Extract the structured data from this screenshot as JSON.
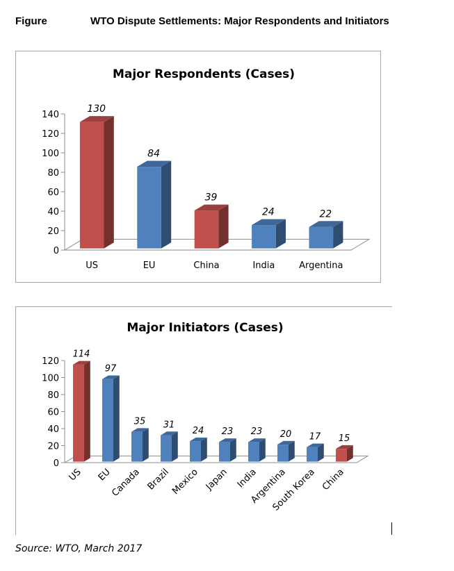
{
  "header": {
    "figure_label": "Figure",
    "title": "WTO Dispute Settlements: Major Respondents and Initiators"
  },
  "source": "Source: WTO, March 2017",
  "colors": {
    "red": "#c0504d",
    "blue": "#4f81bd"
  },
  "chart_data": [
    {
      "type": "bar",
      "title": "Major Respondents (Cases)",
      "categories": [
        "US",
        "EU",
        "China",
        "India",
        "Argentina"
      ],
      "values": [
        130,
        84,
        39,
        24,
        22
      ],
      "bar_colors": [
        "red",
        "blue",
        "red",
        "blue",
        "blue"
      ],
      "ylim": [
        0,
        140
      ],
      "yticks": [
        0,
        20,
        40,
        60,
        80,
        100,
        120,
        140
      ],
      "xlabel": "",
      "ylabel": "",
      "grid": false,
      "legend": "none",
      "style": "3d-column"
    },
    {
      "type": "bar",
      "title": "Major Initiators (Cases)",
      "categories": [
        "US",
        "EU",
        "Canada",
        "Brazil",
        "Mexico",
        "Japan",
        "India",
        "Argentina",
        "South Korea",
        "China"
      ],
      "values": [
        114,
        97,
        35,
        31,
        24,
        23,
        23,
        20,
        17,
        15
      ],
      "bar_colors": [
        "red",
        "blue",
        "blue",
        "blue",
        "blue",
        "blue",
        "blue",
        "blue",
        "blue",
        "red"
      ],
      "ylim": [
        0,
        120
      ],
      "yticks": [
        0,
        20,
        40,
        60,
        80,
        100,
        120
      ],
      "xlabel": "",
      "ylabel": "",
      "grid": false,
      "legend": "none",
      "style": "3d-column",
      "tick_label_rotation": "-45"
    }
  ]
}
